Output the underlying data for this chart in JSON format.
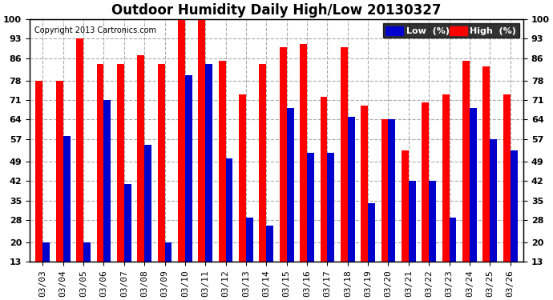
{
  "title": "Outdoor Humidity Daily High/Low 20130327",
  "copyright": "Copyright 2013 Cartronics.com",
  "dates": [
    "03/03",
    "03/04",
    "03/05",
    "03/06",
    "03/07",
    "03/08",
    "03/09",
    "03/10",
    "03/11",
    "03/12",
    "03/13",
    "03/14",
    "03/15",
    "03/16",
    "03/17",
    "03/18",
    "03/19",
    "03/20",
    "03/21",
    "03/22",
    "03/23",
    "03/24",
    "03/25",
    "03/26"
  ],
  "high": [
    78,
    78,
    93,
    84,
    84,
    87,
    84,
    100,
    100,
    85,
    73,
    84,
    90,
    91,
    72,
    90,
    69,
    64,
    53,
    70,
    73,
    85,
    83,
    73
  ],
  "low": [
    20,
    58,
    20,
    71,
    41,
    55,
    20,
    80,
    84,
    50,
    29,
    26,
    68,
    52,
    52,
    65,
    34,
    64,
    42,
    42,
    29,
    68,
    57,
    53
  ],
  "high_color": "#ff0000",
  "low_color": "#0000cc",
  "bg_color": "#ffffff",
  "plot_bg": "#ffffff",
  "grid_color": "#aaaaaa",
  "yticks": [
    13,
    20,
    28,
    35,
    42,
    49,
    57,
    64,
    71,
    78,
    86,
    93,
    100
  ],
  "ymin": 13,
  "ymax": 100,
  "bar_width": 0.35,
  "title_fontsize": 12,
  "tick_fontsize": 8,
  "legend_label_low": "Low  (%)",
  "legend_label_high": "High  (%)"
}
